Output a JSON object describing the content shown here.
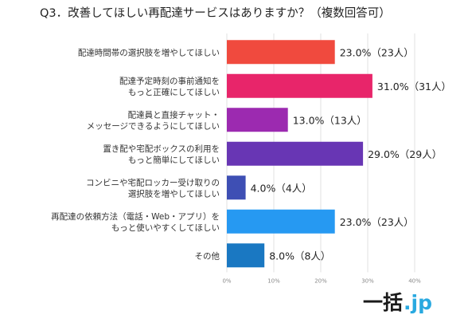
{
  "chart_data": {
    "type": "bar",
    "orientation": "horizontal",
    "title": "Q3．改善してほしい再配達サービスはありますか？（複数回答可）",
    "categories": [
      [
        "配達時間帯の選択肢を増やしてほしい"
      ],
      [
        "配達予定時刻の事前通知を",
        "もっと正確にしてほしい"
      ],
      [
        "配達員と直接チャット・",
        "メッセージできるようにしてほしい"
      ],
      [
        "置き配や宅配ボックスの利用を",
        "もっと簡単にしてほしい"
      ],
      [
        "コンビニや宅配ロッカー受け取りの",
        "選択肢を増やしてほしい"
      ],
      [
        "再配達の依頼方法（電話・Web・アプリ）を",
        "もっと使いやすくしてほしい"
      ],
      [
        "その他"
      ]
    ],
    "values": [
      23.0,
      31.0,
      13.0,
      29.0,
      4.0,
      23.0,
      8.0
    ],
    "data_labels": [
      "23.0%（23人）",
      "31.0%（31人）",
      "13.0%（13人）",
      "29.0%（29人）",
      "4.0%（4人）",
      "23.0%（23人）",
      "8.0%（8人）"
    ],
    "colors": [
      "#f04a3e",
      "#e8256a",
      "#9c2ab0",
      "#6836b4",
      "#3e4fb4",
      "#2699f2",
      "#1a78c2"
    ],
    "xlim": [
      0,
      40
    ],
    "x_ticks": [
      "0%",
      "10%",
      "20%",
      "30%",
      "40%"
    ],
    "grid": true
  },
  "logo": {
    "main": "一括",
    "dot": ".jp"
  }
}
